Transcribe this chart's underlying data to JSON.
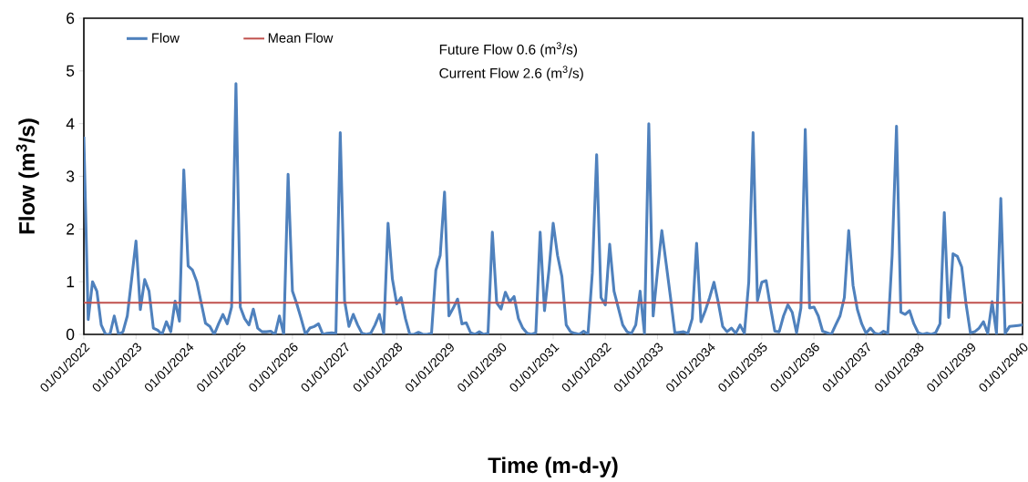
{
  "chart_data": {
    "type": "line",
    "xlabel": "Time (m-d-y)",
    "ylabel": "Flow (m$^{3}$/s)",
    "annotations": [
      "Future Flow   0.6 (m$^{3}$/s)",
      "Current Flow 2.6 (m$^{3}$/s)"
    ],
    "x": [
      "2022-01",
      "2022-02",
      "2022-03",
      "2022-04",
      "2022-05",
      "2022-06",
      "2022-07",
      "2022-08",
      "2022-09",
      "2022-10",
      "2022-11",
      "2022-12",
      "2023-01",
      "2023-02",
      "2023-03",
      "2023-04",
      "2023-05",
      "2023-06",
      "2023-07",
      "2023-08",
      "2023-09",
      "2023-10",
      "2023-11",
      "2023-12",
      "2024-01",
      "2024-02",
      "2024-03",
      "2024-04",
      "2024-05",
      "2024-06",
      "2024-07",
      "2024-08",
      "2024-09",
      "2024-10",
      "2024-11",
      "2024-12",
      "2025-01",
      "2025-02",
      "2025-03",
      "2025-04",
      "2025-05",
      "2025-06",
      "2025-07",
      "2025-08",
      "2025-09",
      "2025-10",
      "2025-11",
      "2025-12",
      "2026-01",
      "2026-02",
      "2026-03",
      "2026-04",
      "2026-05",
      "2026-06",
      "2026-07",
      "2026-08",
      "2026-09",
      "2026-10",
      "2026-11",
      "2026-12",
      "2027-01",
      "2027-02",
      "2027-03",
      "2027-04",
      "2027-05",
      "2027-06",
      "2027-07",
      "2027-08",
      "2027-09",
      "2027-10",
      "2027-11",
      "2027-12",
      "2028-01",
      "2028-02",
      "2028-03",
      "2028-04",
      "2028-05",
      "2028-06",
      "2028-07",
      "2028-08",
      "2028-09",
      "2028-10",
      "2028-11",
      "2028-12",
      "2029-01",
      "2029-02",
      "2029-03",
      "2029-04",
      "2029-05",
      "2029-06",
      "2029-07",
      "2029-08",
      "2029-09",
      "2029-10",
      "2029-11",
      "2029-12",
      "2030-01",
      "2030-02",
      "2030-03",
      "2030-04",
      "2030-05",
      "2030-06",
      "2030-07",
      "2030-08",
      "2030-09",
      "2030-10",
      "2030-11",
      "2030-12",
      "2031-01",
      "2031-02",
      "2031-03",
      "2031-04",
      "2031-05",
      "2031-06",
      "2031-07",
      "2031-08",
      "2031-09",
      "2031-10",
      "2031-11",
      "2031-12",
      "2032-01",
      "2032-02",
      "2032-03",
      "2032-04",
      "2032-05",
      "2032-06",
      "2032-07",
      "2032-08",
      "2032-09",
      "2032-10",
      "2032-11",
      "2032-12",
      "2033-01",
      "2033-02",
      "2033-03",
      "2033-04",
      "2033-05",
      "2033-06",
      "2033-07",
      "2033-08",
      "2033-09",
      "2033-10",
      "2033-11",
      "2033-12",
      "2034-01",
      "2034-02",
      "2034-03",
      "2034-04",
      "2034-05",
      "2034-06",
      "2034-07",
      "2034-08",
      "2034-09",
      "2034-10",
      "2034-11",
      "2034-12",
      "2035-01",
      "2035-02",
      "2035-03",
      "2035-04",
      "2035-05",
      "2035-06",
      "2035-07",
      "2035-08",
      "2035-09",
      "2035-10",
      "2035-11",
      "2035-12",
      "2036-01",
      "2036-02",
      "2036-03",
      "2036-04",
      "2036-05",
      "2036-06",
      "2036-07",
      "2036-08",
      "2036-09",
      "2036-10",
      "2036-11",
      "2036-12",
      "2037-01",
      "2037-02",
      "2037-03",
      "2037-04",
      "2037-05",
      "2037-06",
      "2037-07",
      "2037-08",
      "2037-09",
      "2037-10",
      "2037-11",
      "2037-12",
      "2038-01",
      "2038-02",
      "2038-03",
      "2038-04",
      "2038-05",
      "2038-06",
      "2038-07",
      "2038-08",
      "2038-09",
      "2038-10",
      "2038-11",
      "2038-12",
      "2039-01",
      "2039-02",
      "2039-03",
      "2039-04",
      "2039-05",
      "2039-06",
      "2039-07",
      "2039-08",
      "2039-09",
      "2039-10",
      "2039-11",
      "2039-12",
      "2040-01"
    ],
    "series": [
      {
        "name": "Flow",
        "color": "#4f81bd",
        "values": [
          3.75,
          0.28,
          1.0,
          0.82,
          0.18,
          0,
          0,
          0.35,
          0,
          0.05,
          0.35,
          1.05,
          1.77,
          0.47,
          1.04,
          0.82,
          0.12,
          0.08,
          0,
          0.24,
          0.05,
          0.63,
          0.25,
          3.12,
          1.3,
          1.22,
          1.0,
          0.6,
          0.21,
          0.15,
          0,
          0.2,
          0.38,
          0.2,
          0.52,
          4.76,
          0.52,
          0.3,
          0.18,
          0.48,
          0.12,
          0.05,
          0.05,
          0.06,
          0,
          0.35,
          0,
          3.04,
          0.82,
          0.58,
          0.3,
          0,
          0.12,
          0.15,
          0.2,
          0,
          0.02,
          0.03,
          0.02,
          3.83,
          0.64,
          0.15,
          0.38,
          0.18,
          0.02,
          0,
          0.02,
          0.18,
          0.38,
          0.02,
          2.11,
          1.05,
          0.58,
          0.7,
          0.3,
          0,
          0,
          0.04,
          0,
          0,
          0.02,
          1.22,
          1.5,
          2.7,
          0.35,
          0.5,
          0.67,
          0.2,
          0.22,
          0.03,
          0,
          0.05,
          0,
          0.02,
          1.94,
          0.6,
          0.48,
          0.8,
          0.62,
          0.72,
          0.3,
          0.12,
          0.02,
          0,
          0.03,
          1.94,
          0.45,
          1.2,
          2.11,
          1.5,
          1.1,
          0.18,
          0.05,
          0.02,
          0,
          0.06,
          0,
          1.16,
          3.41,
          0.7,
          0.56,
          1.71,
          0.82,
          0.5,
          0.18,
          0.05,
          0.02,
          0.18,
          0.82,
          0.02,
          4.0,
          0.35,
          1.2,
          1.97,
          1.34,
          0.7,
          0.03,
          0.04,
          0.05,
          0.02,
          0.3,
          1.73,
          0.24,
          0.45,
          0.7,
          0.99,
          0.6,
          0.15,
          0.05,
          0.12,
          0.02,
          0.18,
          0.02,
          0.99,
          3.83,
          0.64,
          0.99,
          1.02,
          0.52,
          0.06,
          0.05,
          0.35,
          0.56,
          0.42,
          0.03,
          0.5,
          3.89,
          0.5,
          0.52,
          0.35,
          0.06,
          0.03,
          0,
          0.18,
          0.35,
          0.7,
          1.97,
          0.93,
          0.47,
          0.2,
          0.02,
          0.12,
          0.02,
          0,
          0.06,
          0.02,
          1.5,
          3.95,
          0.42,
          0.38,
          0.45,
          0.2,
          0.03,
          0,
          0.02,
          0,
          0.03,
          0.2,
          2.31,
          0.32,
          1.53,
          1.48,
          1.28,
          0.58,
          0.03,
          0.05,
          0.12,
          0.24,
          0.02,
          0.62,
          0.02,
          2.58,
          0.02,
          0.15,
          0.16,
          0.17,
          0.18
        ]
      },
      {
        "name": "Mean Flow",
        "color": "#c0504d",
        "x": [
          "2022-01",
          "2040-01"
        ],
        "values": [
          0.6,
          0.6
        ]
      }
    ],
    "xlim": [
      "2022-01-01",
      "2040-01-01"
    ],
    "xticks": [
      {
        "value": "2022-01-01",
        "label": "01/01/2022"
      },
      {
        "value": "2023-01-01",
        "label": "01/01/2023"
      },
      {
        "value": "2024-01-01",
        "label": "01/01/2024"
      },
      {
        "value": "2025-01-01",
        "label": "01/01/2025"
      },
      {
        "value": "2026-01-01",
        "label": "01/01/2026"
      },
      {
        "value": "2027-01-01",
        "label": "01/01/2027"
      },
      {
        "value": "2028-01-01",
        "label": "01/01/2028"
      },
      {
        "value": "2029-01-01",
        "label": "01/01/2029"
      },
      {
        "value": "2030-01-01",
        "label": "01/01/2030"
      },
      {
        "value": "2031-01-01",
        "label": "01/01/2031"
      },
      {
        "value": "2032-01-01",
        "label": "01/01/2032"
      },
      {
        "value": "2033-01-01",
        "label": "01/01/2033"
      },
      {
        "value": "2034-01-01",
        "label": "01/01/2034"
      },
      {
        "value": "2035-01-01",
        "label": "01/01/2035"
      },
      {
        "value": "2036-01-01",
        "label": "01/01/2036"
      },
      {
        "value": "2037-01-01",
        "label": "01/01/2037"
      },
      {
        "value": "2038-01-01",
        "label": "01/01/2038"
      },
      {
        "value": "2039-01-01",
        "label": "01/01/2039"
      },
      {
        "value": "2040-01-01",
        "label": "01/01/2040"
      }
    ],
    "ylim": [
      0,
      6
    ],
    "yticks": [
      0,
      1,
      2,
      3,
      4,
      5,
      6
    ],
    "legend": "top left",
    "grid": false
  }
}
